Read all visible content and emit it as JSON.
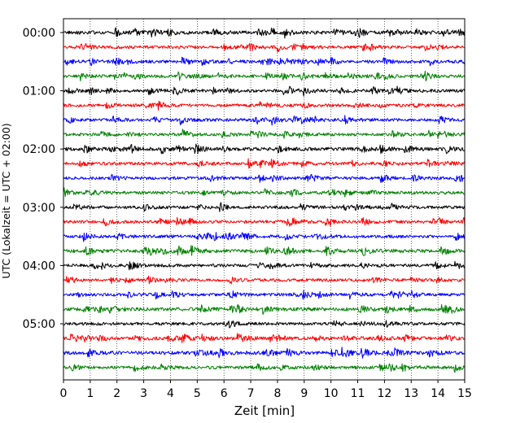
{
  "chart_data": {
    "type": "line",
    "title": "",
    "xlabel": "Zeit  [min]",
    "ylabel": "UTC (Lokalzeit = UTC + 02:00)",
    "xlim": [
      0,
      15
    ],
    "x_ticks": [
      0,
      1,
      2,
      3,
      4,
      5,
      6,
      7,
      8,
      9,
      10,
      11,
      12,
      13,
      14,
      15
    ],
    "x_tick_labels": [
      "0",
      "1",
      "2",
      "3",
      "4",
      "5",
      "6",
      "7",
      "8",
      "9",
      "10",
      "11",
      "12",
      "13",
      "14",
      "15"
    ],
    "y_tick_labels": [
      "00:00",
      "01:00",
      "02:00",
      "03:00",
      "04:00",
      "05:00"
    ],
    "trace_interval_minutes": 15,
    "trace_count": 24,
    "trace_color_cycle": [
      "#000000",
      "#ff0000",
      "#0000ff",
      "#008000"
    ],
    "x_grid": "dotted",
    "y_grid": false,
    "legend": "none",
    "series": [
      {
        "start": "00:00",
        "amplitude": 0.8
      },
      {
        "start": "00:15",
        "amplitude": 0.7
      },
      {
        "start": "00:30",
        "amplitude": 0.7
      },
      {
        "start": "00:45",
        "amplitude": 0.7
      },
      {
        "start": "01:00",
        "amplitude": 0.7
      },
      {
        "start": "01:15",
        "amplitude": 0.7
      },
      {
        "start": "01:30",
        "amplitude": 0.7
      },
      {
        "start": "01:45",
        "amplitude": 0.7
      },
      {
        "start": "02:00",
        "amplitude": 0.8
      },
      {
        "start": "02:15",
        "amplitude": 0.7
      },
      {
        "start": "02:30",
        "amplitude": 0.7
      },
      {
        "start": "02:45",
        "amplitude": 0.7
      },
      {
        "start": "03:00",
        "amplitude": 0.7
      },
      {
        "start": "03:15",
        "amplitude": 0.7
      },
      {
        "start": "03:30",
        "amplitude": 0.7
      },
      {
        "start": "03:45",
        "amplitude": 0.8
      },
      {
        "start": "04:00",
        "amplitude": 0.7
      },
      {
        "start": "04:15",
        "amplitude": 0.7
      },
      {
        "start": "04:30",
        "amplitude": 0.7
      },
      {
        "start": "04:45",
        "amplitude": 0.8
      },
      {
        "start": "05:00",
        "amplitude": 0.7
      },
      {
        "start": "05:15",
        "amplitude": 0.8
      },
      {
        "start": "05:30",
        "amplitude": 0.8
      },
      {
        "start": "05:45",
        "amplitude": 0.7
      }
    ]
  }
}
